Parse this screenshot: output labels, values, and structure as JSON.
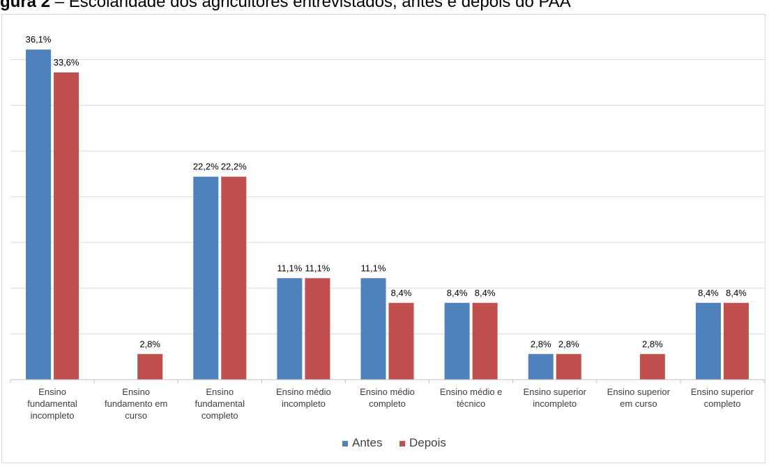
{
  "title": {
    "prefix": "gura 2",
    "text": "– Escolaridade dos agricultores entrevistados, antes e depois do PAA"
  },
  "colors": {
    "antes": "#4f81bd",
    "depois": "#c0504d",
    "grid": "#d9d9d9",
    "axis": "#bfbfbf"
  },
  "chart_data": {
    "type": "bar",
    "categories": [
      [
        "Ensino",
        "fundamental",
        "incompleto"
      ],
      [
        "Ensino",
        "fundamento em",
        "curso"
      ],
      [
        "Ensino",
        "fundamental",
        "completo"
      ],
      [
        "Ensino médio",
        "incompleto"
      ],
      [
        "Ensino médio",
        "completo"
      ],
      [
        "Ensino médio e",
        "técnico"
      ],
      [
        "Ensino superior",
        "incompleto"
      ],
      [
        "Ensino superior",
        "em curso"
      ],
      [
        "Ensino superior",
        "completo"
      ]
    ],
    "series": [
      {
        "name": "Antes",
        "values": [
          36.1,
          null,
          22.2,
          11.1,
          11.1,
          8.4,
          2.8,
          null,
          8.4
        ],
        "labels": [
          "36,1%",
          "",
          "22,2%",
          "11,1%",
          "11,1%",
          "8,4%",
          "2,8%",
          "",
          "8,4%"
        ]
      },
      {
        "name": "Depois",
        "values": [
          33.6,
          2.8,
          22.2,
          11.1,
          8.4,
          8.4,
          2.8,
          2.8,
          8.4
        ],
        "labels": [
          "33,6%",
          "2,8%",
          "22,2%",
          "11,1%",
          "8,4%",
          "8,4%",
          "2,8%",
          "2,8%",
          "8,4%"
        ]
      }
    ],
    "ylim": [
      0,
      40
    ],
    "grid": true,
    "legend": "bottom-center"
  }
}
